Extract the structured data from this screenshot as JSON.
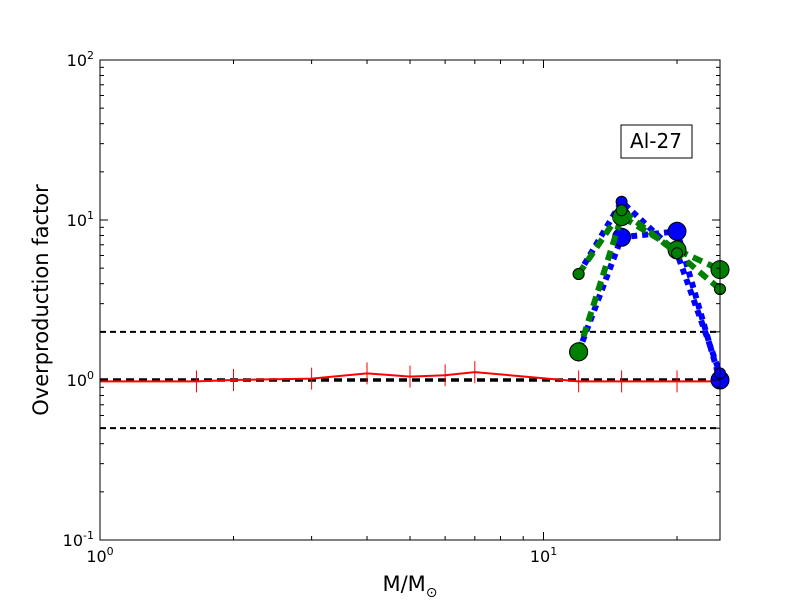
{
  "chart_data": {
    "type": "line",
    "title": "",
    "xlabel": "M/M",
    "xlabel_sub": "⊙",
    "ylabel": "Overproduction factor",
    "xscale": "log",
    "yscale": "log",
    "xlim": [
      1,
      25
    ],
    "ylim": [
      0.1,
      100
    ],
    "grid": false,
    "legend": "none",
    "annotation": "Al-27",
    "x_ticks": [
      {
        "value": 1,
        "base": "10",
        "exp": "0"
      },
      {
        "value": 10,
        "base": "10",
        "exp": "1"
      }
    ],
    "y_ticks": [
      {
        "value": 0.1,
        "base": "10",
        "exp": "-1"
      },
      {
        "value": 1,
        "base": "10",
        "exp": "0"
      },
      {
        "value": 10,
        "base": "10",
        "exp": "1"
      },
      {
        "value": 100,
        "base": "10",
        "exp": "2"
      }
    ],
    "reference_lines": [
      {
        "y": 2,
        "color": "#000000",
        "style": "dashed",
        "weight": "normal"
      },
      {
        "y": 1,
        "color": "#000000",
        "style": "dashed",
        "weight": "bold"
      },
      {
        "y": 0.5,
        "color": "#000000",
        "style": "dashed",
        "weight": "normal"
      }
    ],
    "series": [
      {
        "color": "#ff0000",
        "style": "solid",
        "x": [
          1,
          1.65,
          2,
          3,
          4,
          5,
          6,
          7,
          12,
          15,
          20,
          25
        ],
        "y": [
          0.98,
          0.98,
          1.0,
          1.02,
          1.1,
          1.05,
          1.07,
          1.12,
          0.98,
          0.98,
          0.98,
          0.98
        ]
      },
      {
        "color": "#0000ff",
        "style": "dotted",
        "x": [
          12,
          15,
          20,
          25
        ],
        "y": [
          1.5,
          7.8,
          8.5,
          1.0
        ]
      },
      {
        "color": "#0000ff",
        "style": "dotted",
        "x": [
          12,
          15,
          20,
          25
        ],
        "y": [
          4.6,
          13.0,
          6.2,
          1.1
        ]
      },
      {
        "color": "#008000",
        "style": "dashed",
        "x": [
          12,
          15,
          20,
          25
        ],
        "y": [
          1.5,
          10.5,
          6.5,
          4.9
        ]
      },
      {
        "color": "#008000",
        "style": "dashed",
        "x": [
          12,
          15,
          20,
          25
        ],
        "y": [
          4.6,
          11.5,
          6.2,
          3.7
        ]
      }
    ]
  }
}
